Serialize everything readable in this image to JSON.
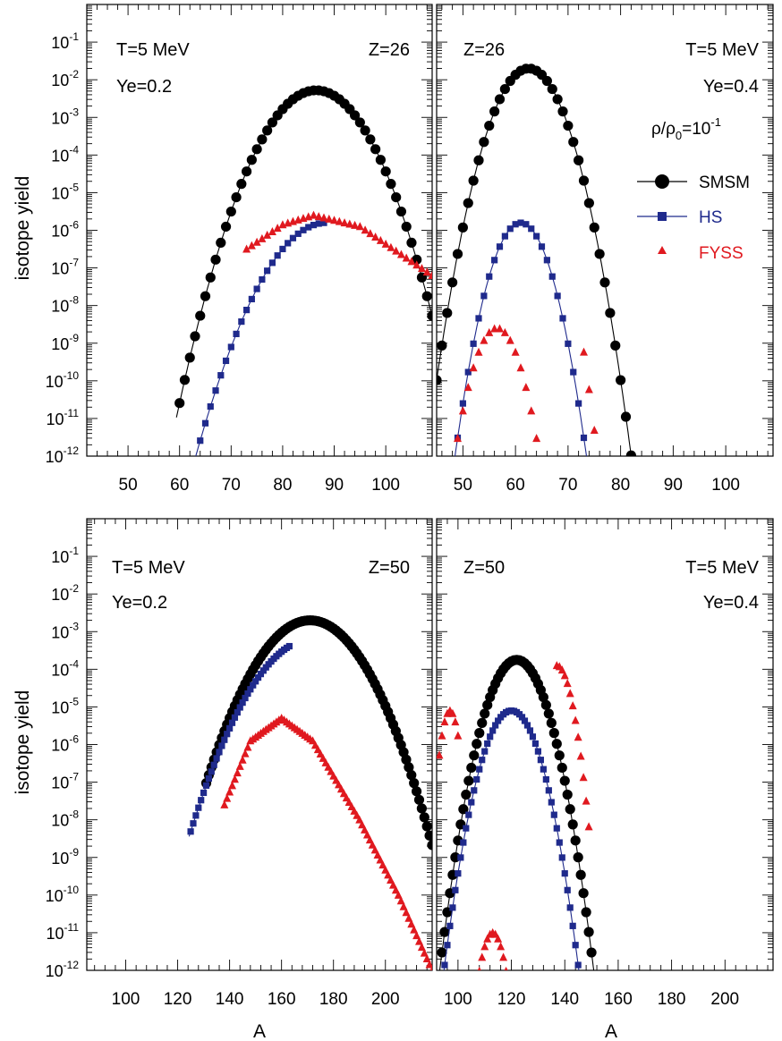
{
  "figure": {
    "ylabel": "isotope yield",
    "xlabel": "A",
    "legend_placement": "right, top-right panel",
    "legend": [
      {
        "label": "SMSM",
        "color": "#000000",
        "marker": "circle"
      },
      {
        "label": "HS",
        "color": "#1f2a8c",
        "marker": "square"
      },
      {
        "label": "FYSS",
        "color": "#e0191f",
        "marker": "triangle"
      }
    ],
    "density_label_rho": "ρ/ρ",
    "density_label_sub": "0",
    "density_label_eq": "=10",
    "density_label_exp": "-1",
    "ytick_labels": [
      {
        "base": "10",
        "exp": "-1"
      },
      {
        "base": "10",
        "exp": "-2"
      },
      {
        "base": "10",
        "exp": "-3"
      },
      {
        "base": "10",
        "exp": "-4"
      },
      {
        "base": "10",
        "exp": "-5"
      },
      {
        "base": "10",
        "exp": "-6"
      },
      {
        "base": "10",
        "exp": "-7"
      },
      {
        "base": "10",
        "exp": "-8"
      },
      {
        "base": "10",
        "exp": "-9"
      },
      {
        "base": "10",
        "exp": "-10"
      },
      {
        "base": "10",
        "exp": "-11"
      },
      {
        "base": "10",
        "exp": "-12"
      }
    ]
  },
  "chart_data": [
    {
      "type": "scatter",
      "panel": "top-left",
      "labels": [
        "T=5 MeV",
        "Ye=0.2",
        "Z=26"
      ],
      "xlim": [
        42,
        109
      ],
      "ylim": [
        1e-12,
        1
      ],
      "yscale": "log",
      "xticks": [
        50,
        60,
        70,
        80,
        90,
        100
      ],
      "show_xtick_labels": true,
      "series": [
        {
          "name": "SMSM",
          "curve": "gauss",
          "A0": 86.5,
          "logpeak": -2.28,
          "sigma": 6.5,
          "a_min": 60,
          "a_max": 109
        },
        {
          "name": "HS",
          "curve": "gauss",
          "A0": 88.5,
          "logpeak": -5.8,
          "sigma": 7.2,
          "a_min": 62,
          "a_max": 88
        },
        {
          "name": "FYSS",
          "curve": "linear",
          "points": [
            [
              73,
              -6.5
            ],
            [
              80,
              -5.85
            ],
            [
              86,
              -5.6
            ],
            [
              95,
              -5.9
            ],
            [
              109,
              -7.2
            ]
          ],
          "a_min": 73,
          "a_max": 109
        }
      ]
    },
    {
      "type": "scatter",
      "panel": "top-right",
      "labels": [
        "Z=26",
        "T=5 MeV",
        "Ye=0.4"
      ],
      "xlim": [
        45,
        109
      ],
      "ylim": [
        1e-12,
        1
      ],
      "yscale": "log",
      "xticks": [
        50,
        60,
        70,
        80,
        90,
        100
      ],
      "show_xtick_labels": true,
      "series": [
        {
          "name": "SMSM",
          "curve": "gauss",
          "A0": 62.5,
          "logpeak": -1.7,
          "sigma": 4.3,
          "a_min": 45,
          "a_max": 86
        },
        {
          "name": "HS",
          "curve": "gauss",
          "A0": 61,
          "logpeak": -5.8,
          "sigma": 3.55,
          "a_min": 46,
          "a_max": 81
        },
        {
          "name": "FYSS",
          "curve": "parts",
          "parts": [
            {
              "A0": 56.5,
              "logpeak": -8.6,
              "sigma": 3.1,
              "a_min": 48,
              "a_max": 68
            },
            {
              "A0": 62,
              "logpeak": -4,
              "sigma": 3.4,
              "a_min": 73,
              "a_max": 77
            }
          ]
        }
      ]
    },
    {
      "type": "scatter",
      "panel": "bottom-left",
      "labels": [
        "T=5 MeV",
        "Ye=0.2",
        "Z=50"
      ],
      "xlim": [
        85,
        218
      ],
      "ylim": [
        1e-12,
        1
      ],
      "yscale": "log",
      "xticks": [
        100,
        120,
        140,
        160,
        180,
        200
      ],
      "show_xtick_labels": true,
      "series": [
        {
          "name": "SMSM",
          "curve": "gauss",
          "A0": 171,
          "logpeak": -2.7,
          "sigma": 13.6,
          "a_min": 131,
          "a_max": 218
        },
        {
          "name": "HS",
          "curve": "gauss",
          "A0": 172,
          "logpeak": -3.2,
          "sigma": 14.7,
          "a_min": 125,
          "a_max": 163
        },
        {
          "name": "FYSS",
          "curve": "linear",
          "points": [
            [
              138,
              -7.6
            ],
            [
              148,
              -5.9
            ],
            [
              160,
              -5.3
            ],
            [
              172,
              -5.9
            ],
            [
              190,
              -8.0
            ],
            [
              205,
              -10.0
            ],
            [
              218,
              -12.0
            ]
          ],
          "a_min": 138,
          "a_max": 218
        }
      ]
    },
    {
      "type": "scatter",
      "panel": "bottom-right",
      "labels": [
        "Z=50",
        "T=5 MeV",
        "Ye=0.4"
      ],
      "xlim": [
        92,
        218
      ],
      "ylim": [
        1e-12,
        1
      ],
      "yscale": "log",
      "xticks": [
        100,
        120,
        140,
        160,
        180,
        200
      ],
      "show_xtick_labels": true,
      "series": [
        {
          "name": "SMSM",
          "curve": "gauss",
          "A0": 122,
          "logpeak": -3.75,
          "sigma": 7.1,
          "a_min": 92,
          "a_max": 151
        },
        {
          "name": "HS",
          "curve": "gauss",
          "A0": 120,
          "logpeak": -5.1,
          "sigma": 6.8,
          "a_min": 92,
          "a_max": 145
        },
        {
          "name": "FYSS",
          "curve": "parts",
          "parts": [
            {
              "A0": 97,
              "logpeak": -5.1,
              "sigma": 2.6,
              "a_min": 93,
              "a_max": 100
            },
            {
              "A0": 113,
              "logpeak": -11,
              "sigma": 3.5,
              "a_min": 107,
              "a_max": 120
            },
            {
              "A0": 137,
              "logpeak": -3.9,
              "sigma": 4.1,
              "a_min": 137,
              "a_max": 149
            }
          ]
        }
      ]
    }
  ]
}
